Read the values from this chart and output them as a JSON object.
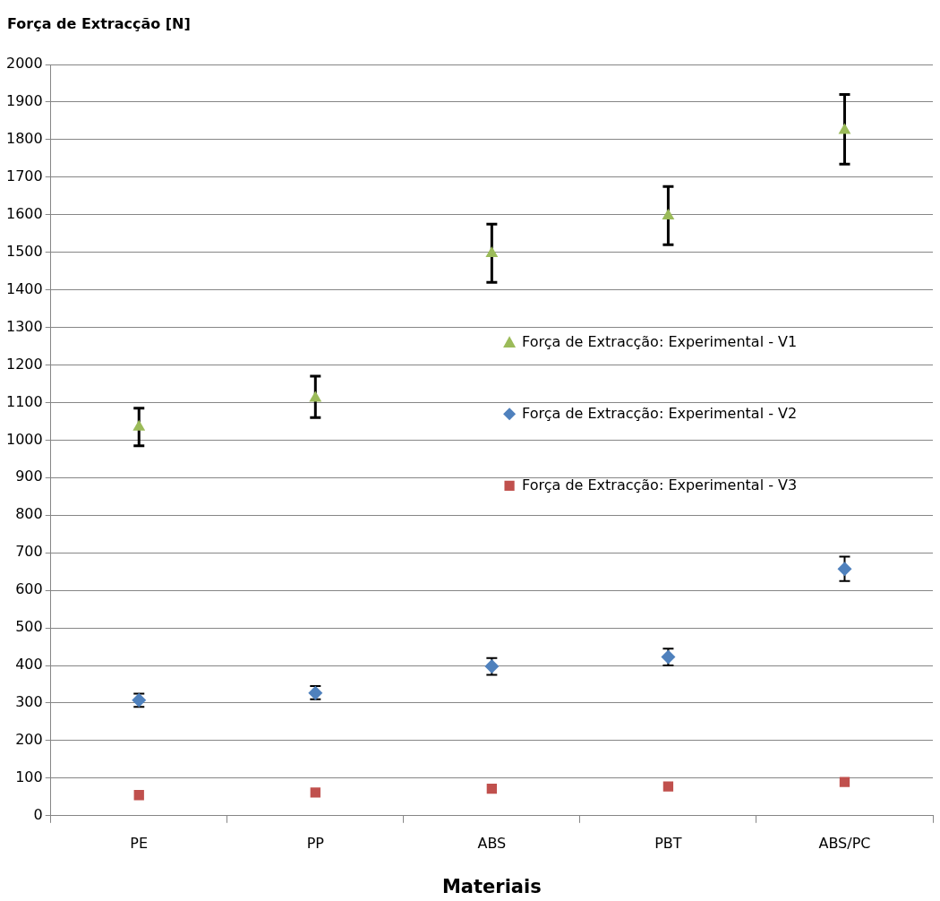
{
  "chart_data": {
    "type": "scatter",
    "ylabel": "Força de Extracção [N]",
    "xlabel": "Materiais",
    "categories": [
      "PE",
      "PP",
      "ABS",
      "PBT",
      "ABS/PC"
    ],
    "ylim": [
      0,
      2000
    ],
    "yticks": [
      0,
      100,
      200,
      300,
      400,
      500,
      600,
      700,
      800,
      900,
      1000,
      1100,
      1200,
      1300,
      1400,
      1500,
      1600,
      1700,
      1800,
      1900,
      2000
    ],
    "grid": "y",
    "legend": "right",
    "series": [
      {
        "name": "Força de Extracção: Experimental - V1",
        "color": "#9bbb59",
        "marker": "triangle",
        "values": [
          1035,
          1112,
          1497,
          1597,
          1825
        ],
        "errors": [
          [
            985,
            1085
          ],
          [
            1060,
            1170
          ],
          [
            1420,
            1575
          ],
          [
            1520,
            1675
          ],
          [
            1735,
            1920
          ]
        ]
      },
      {
        "name": "Força de Extracção: Experimental - V2",
        "color": "#4f81bd",
        "marker": "diamond",
        "values": [
          308,
          327,
          398,
          423,
          657
        ],
        "errors": [
          [
            290,
            325
          ],
          [
            310,
            345
          ],
          [
            375,
            420
          ],
          [
            400,
            445
          ],
          [
            625,
            690
          ]
        ]
      },
      {
        "name": "Força de Extracção: Experimental - V3",
        "color": "#c0504d",
        "marker": "square",
        "values": [
          55,
          62,
          72,
          78,
          90
        ]
      }
    ]
  }
}
